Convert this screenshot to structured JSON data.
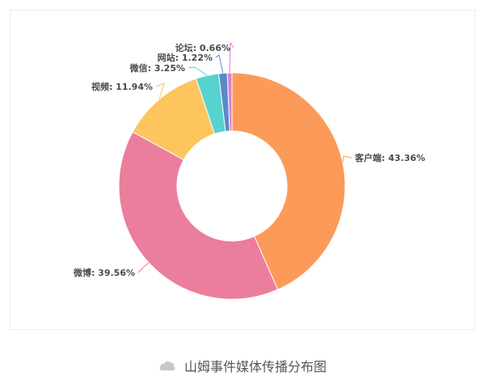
{
  "chart_data": {
    "type": "pie",
    "style": "donut",
    "series": [
      {
        "label": "客户端",
        "value": 43.36,
        "display": "客户端: 43.36%",
        "color": "#FC9A59"
      },
      {
        "label": "微博",
        "value": 39.56,
        "display": "微博: 39.56%",
        "color": "#EB7E9C"
      },
      {
        "label": "视频",
        "value": 11.94,
        "display": "视频: 11.94%",
        "color": "#FDC55E"
      },
      {
        "label": "微信",
        "value": 3.25,
        "display": "微信: 3.25%",
        "color": "#56D2CF"
      },
      {
        "label": "网站",
        "value": 1.22,
        "display": "网站: 1.22%",
        "color": "#5A89C9"
      },
      {
        "label": "论坛",
        "value": 0.66,
        "display": "论坛: 0.66%",
        "color": "#D97FD6"
      }
    ]
  },
  "caption": {
    "text": "山姆事件媒体传播分布图",
    "icon": "cloud-icon",
    "icon_color": "#c8c8c8"
  }
}
